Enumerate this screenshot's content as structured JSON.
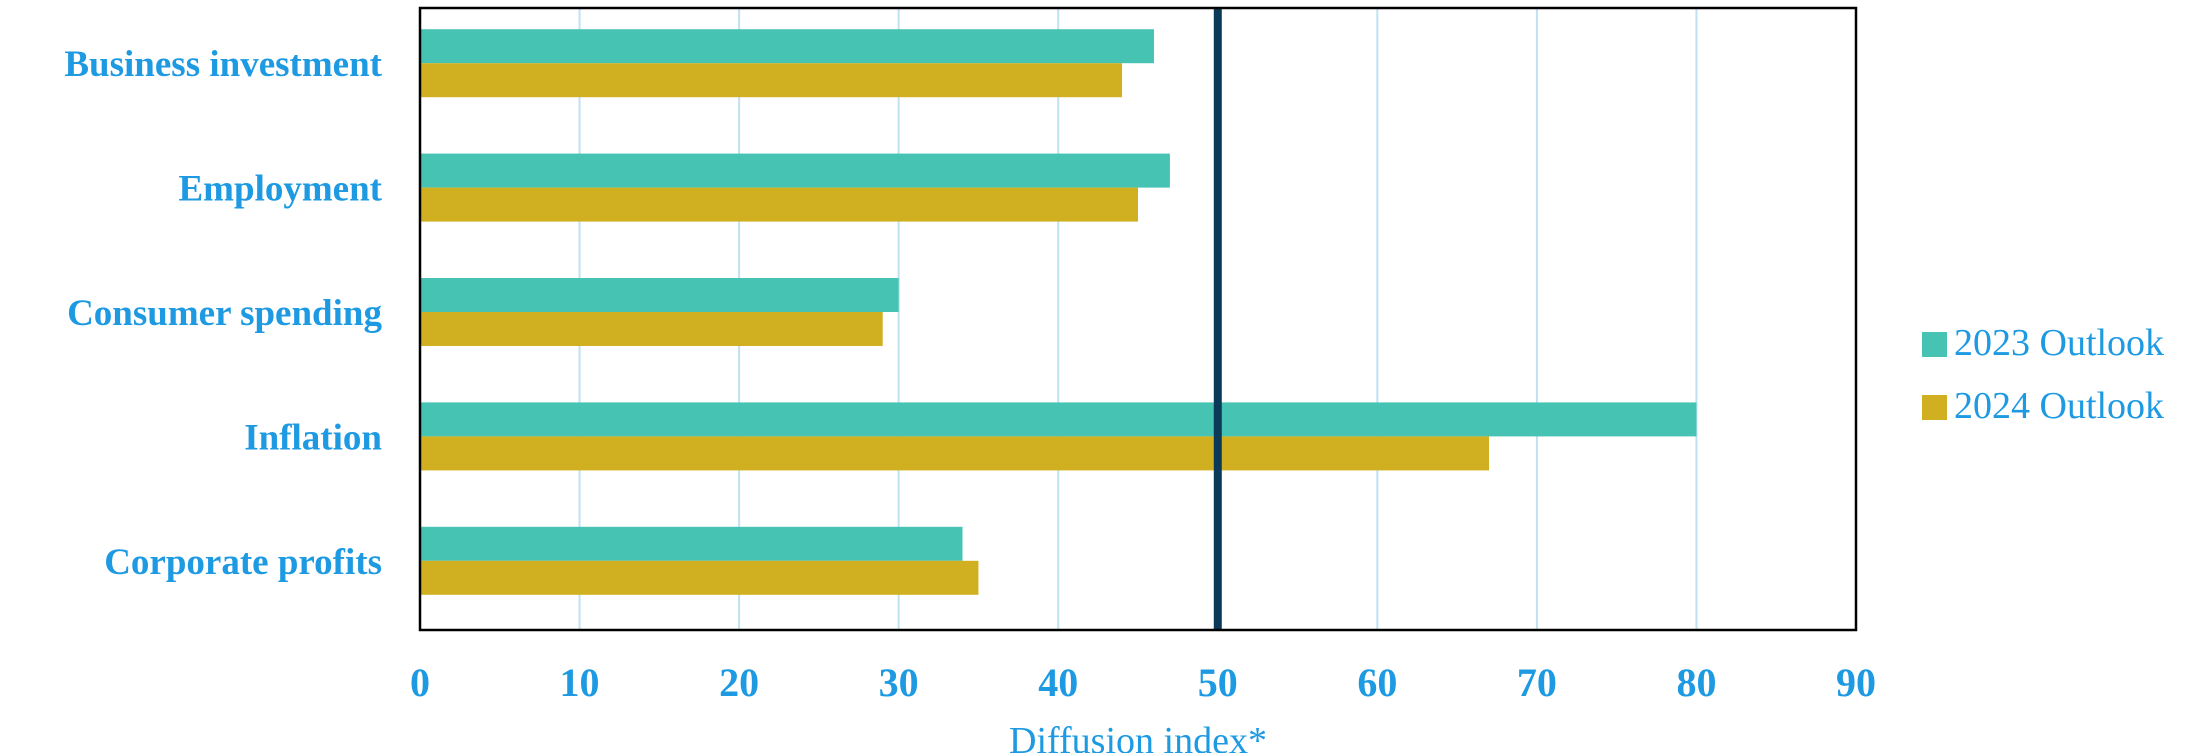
{
  "chart_data": {
    "type": "bar",
    "orientation": "horizontal",
    "categories": [
      "Business investment",
      "Employment",
      "Consumer spending",
      "Inflation",
      "Corporate profits"
    ],
    "series": [
      {
        "name": "2023 Outlook",
        "values": [
          46,
          47,
          30,
          80,
          34
        ]
      },
      {
        "name": "2024 Outlook",
        "values": [
          44,
          45,
          29,
          67,
          35
        ]
      }
    ],
    "xlabel": "Diffusion index*",
    "ylabel": "",
    "xlim": [
      0,
      90
    ],
    "xticks": [
      "0",
      "10",
      "20",
      "30",
      "40",
      "50",
      "60",
      "70",
      "80",
      "90"
    ],
    "reference_line": 50,
    "grid": "vertical",
    "legend": "right",
    "colors": {
      "series": [
        "#47c3b4",
        "#d0b021"
      ],
      "labels": "#1d9ae2",
      "gridline": "#bfe2f3",
      "reference_line": "#0a3a57",
      "frame": "#000000"
    }
  }
}
